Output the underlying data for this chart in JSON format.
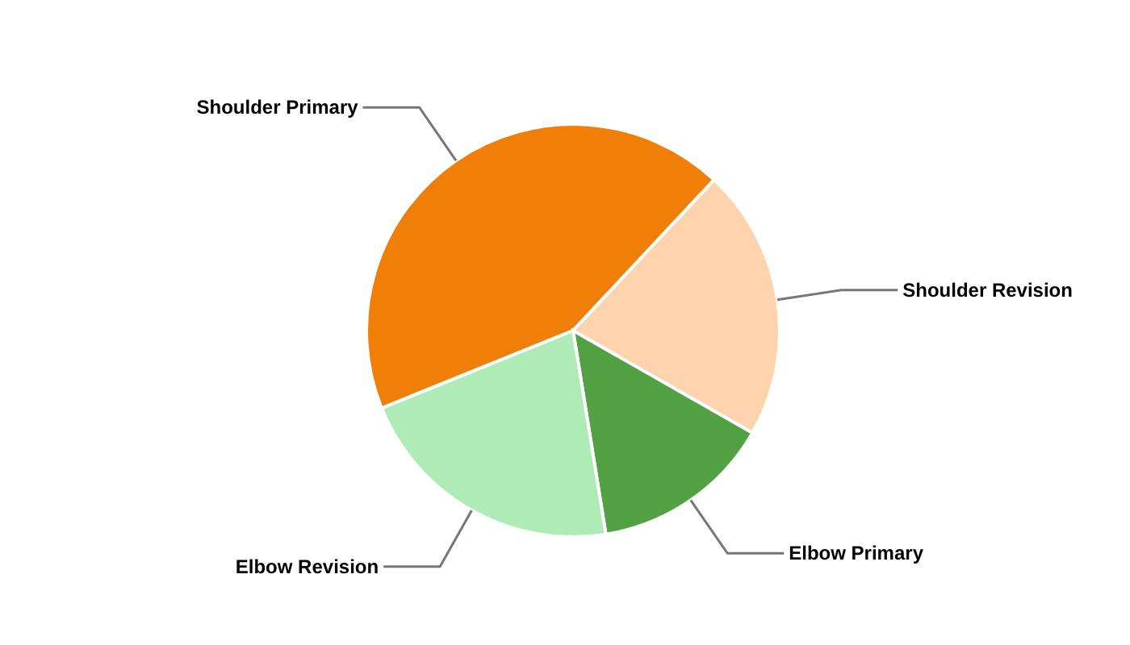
{
  "chart_data": {
    "type": "pie",
    "categories": [
      "Shoulder Primary",
      "Shoulder Revision",
      "Elbow Primary",
      "Elbow Revision"
    ],
    "values": [
      43.1,
      21.3,
      14.2,
      21.4
    ],
    "colors": [
      "#f07f09",
      "#fdd4ae",
      "#52a244",
      "#afebb6"
    ]
  }
}
